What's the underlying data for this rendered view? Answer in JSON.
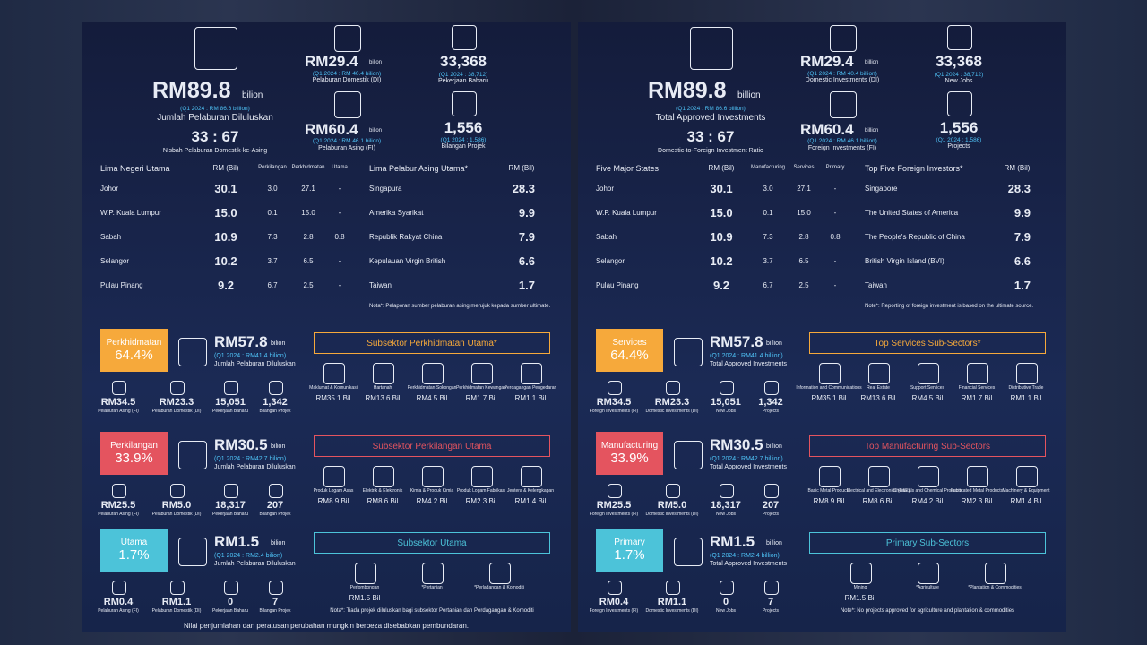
{
  "panels": [
    {
      "headline": {
        "value": "RM89.8",
        "unit": "bilion",
        "prior": "(Q1 2024 : RM 86.6 billion)",
        "label": "Jumlah Pelaburan Diluluskan"
      },
      "ratio": {
        "value": "33 : 67",
        "label": "Nisbah Pelaburan Domestik-ke-Asing"
      },
      "domestic": {
        "value": "RM29.4",
        "unit": "bilion",
        "prior": "(Q1 2024 : RM 40.4 bilion)",
        "label": "Pelaburan Domestik (DI)"
      },
      "foreign": {
        "value": "RM60.4",
        "unit": "bilion",
        "prior": "(Q1 2024 : RM 46.1 bilion)",
        "label": "Pelaburan Asing (FI)"
      },
      "jobs": {
        "value": "33,368",
        "prior": "(Q1 2024 : 38,712)",
        "label": "Pekerjaan Baharu"
      },
      "projects": {
        "value": "1,556",
        "prior": "(Q1 2024 : 1,586)",
        "label": "Bilangan Projek"
      },
      "states": {
        "title": "Lima Negeri Utama",
        "headers": [
          "RM (Bil)",
          "Perkilangan",
          "Perkhidmatan",
          "Utama"
        ],
        "rows": [
          {
            "name": "Johor",
            "value": "30.1",
            "manufacturing": "3.0",
            "services": "27.1",
            "primary": "-"
          },
          {
            "name": "W.P. Kuala Lumpur",
            "value": "15.0",
            "manufacturing": "0.1",
            "services": "15.0",
            "primary": "-"
          },
          {
            "name": "Sabah",
            "value": "10.9",
            "manufacturing": "7.3",
            "services": "2.8",
            "primary": "0.8"
          },
          {
            "name": "Selangor",
            "value": "10.2",
            "manufacturing": "3.7",
            "services": "6.5",
            "primary": "-"
          },
          {
            "name": "Pulau Pinang",
            "value": "9.2",
            "manufacturing": "6.7",
            "services": "2.5",
            "primary": "-"
          }
        ]
      },
      "investors": {
        "title": "Lima Pelabur Asing Utama*",
        "header": "RM (Bil)",
        "rows": [
          {
            "name": "Singapura",
            "value": "28.3"
          },
          {
            "name": "Amerika Syarikat",
            "value": "9.9"
          },
          {
            "name": "Republik Rakyat China",
            "value": "7.9"
          },
          {
            "name": "Kepulauan Virgin British",
            "value": "6.6"
          },
          {
            "name": "Taiwan",
            "value": "1.7"
          }
        ],
        "note": "Nota*: Pelaporan sumber pelaburan asing merujuk kepada sumber ultimate."
      },
      "sectors": [
        {
          "name": "Perkhidmatan",
          "share": "64.4%",
          "value": "RM57.8",
          "unit": "bilion",
          "prior": "(Q1 2024 : RM41.4 bilion)",
          "label": "Jumlah Pelaburan Diluluskan",
          "stats": [
            {
              "value": "RM34.5",
              "label": "Pelaburan Asing (FI)"
            },
            {
              "value": "RM23.3",
              "label": "Pelaburan Domestik (DI)"
            },
            {
              "value": "15,051",
              "label": "Pekerjaan Baharu"
            },
            {
              "value": "1,342",
              "label": "Bilangan Projek"
            }
          ],
          "subsector_title": "Subsektor Perkhidmatan Utama*",
          "subsectors": [
            {
              "label": "Maklumat & Komunikasi",
              "value": "RM35.1 Bil"
            },
            {
              "label": "Hartanah",
              "value": "RM13.6 Bil"
            },
            {
              "label": "Perkhidmatan Sokongan",
              "value": "RM4.5 Bil"
            },
            {
              "label": "Perkhidmatan Kewangan",
              "value": "RM1.7 Bil"
            },
            {
              "label": "Perdagangan Pengedaran",
              "value": "RM1.1 Bil"
            }
          ]
        },
        {
          "name": "Perkilangan",
          "share": "33.9%",
          "value": "RM30.5",
          "unit": "bilion",
          "prior": "(Q1 2024 : RM42.7 bilion)",
          "label": "Jumlah Pelaburan Diluluskan",
          "stats": [
            {
              "value": "RM25.5",
              "label": "Pelaburan Asing (FI)"
            },
            {
              "value": "RM5.0",
              "label": "Pelaburan Domestik (DI)"
            },
            {
              "value": "18,317",
              "label": "Pekerjaan Baharu"
            },
            {
              "value": "207",
              "label": "Bilangan Projek"
            }
          ],
          "subsector_title": "Subsektor Perkilangan Utama",
          "subsectors": [
            {
              "label": "Produk Logam Asas",
              "value": "RM8.9 Bil"
            },
            {
              "label": "Elektrik & Elektronik",
              "value": "RM8.6 Bil"
            },
            {
              "label": "Kimia & Produk Kimia",
              "value": "RM4.2 Bil"
            },
            {
              "label": "Produk Logam Fabrikasi",
              "value": "RM2.3 Bil"
            },
            {
              "label": "Jentera & Kelengkapan",
              "value": "RM1.4 Bil"
            }
          ]
        },
        {
          "name": "Utama",
          "share": "1.7%",
          "value": "RM1.5",
          "unit": "bilion",
          "prior": "(Q1 2024 : RM2.4 bilion)",
          "label": "Jumlah Pelaburan Diluluskan",
          "stats": [
            {
              "value": "RM0.4",
              "label": "Pelaburan Asing (FI)"
            },
            {
              "value": "RM1.1",
              "label": "Pelaburan Domestik (DI)"
            },
            {
              "value": "0",
              "label": "Pekerjaan Baharu"
            },
            {
              "value": "7",
              "label": "Bilangan Projek"
            }
          ],
          "subsector_title": "Subsektor Utama",
          "subsectors": [
            {
              "label": "Perlombongan",
              "value": "RM1.5 Bil"
            },
            {
              "label": "*Pertanian"
            },
            {
              "label": "*Perladangan & Komoditi"
            }
          ]
        }
      ],
      "note": "Nota*: Tiada projek diluluskan bagi subsektor Pertanian dan Perdagangan & Komoditi",
      "footer": "Nilai penjumlahan dan peratusan perubahan mungkin berbeza disebabkan pembundaran."
    },
    {
      "headline": {
        "value": "RM89.8",
        "unit": "billion",
        "prior": "(Q1 2024 : RM 86.6 billion)",
        "label": "Total Approved Investments"
      },
      "ratio": {
        "value": "33 : 67",
        "label": "Domestic-to-Foreign Investment Ratio"
      },
      "domestic": {
        "value": "RM29.4",
        "unit": "billion",
        "prior": "(Q1 2024 : RM 40.4 billion)",
        "label": "Domestic Investments (DI)"
      },
      "foreign": {
        "value": "RM60.4",
        "unit": "billion",
        "prior": "(Q1 2024 : RM 46.1 billion)",
        "label": "Foreign Investments (FI)"
      },
      "jobs": {
        "value": "33,368",
        "prior": "(Q1 2024 : 38,712)",
        "label": "New Jobs"
      },
      "projects": {
        "value": "1,556",
        "prior": "(Q1 2024 : 1,586)",
        "label": "Projects"
      },
      "states": {
        "title": "Five Major States",
        "headers": [
          "RM (Bil)",
          "Manufacturing",
          "Services",
          "Primary"
        ],
        "rows": [
          {
            "name": "Johor",
            "value": "30.1",
            "manufacturing": "3.0",
            "services": "27.1",
            "primary": "-"
          },
          {
            "name": "W.P. Kuala Lumpur",
            "value": "15.0",
            "manufacturing": "0.1",
            "services": "15.0",
            "primary": "-"
          },
          {
            "name": "Sabah",
            "value": "10.9",
            "manufacturing": "7.3",
            "services": "2.8",
            "primary": "0.8"
          },
          {
            "name": "Selangor",
            "value": "10.2",
            "manufacturing": "3.7",
            "services": "6.5",
            "primary": "-"
          },
          {
            "name": "Pulau Pinang",
            "value": "9.2",
            "manufacturing": "6.7",
            "services": "2.5",
            "primary": "-"
          }
        ]
      },
      "investors": {
        "title": "Top Five  Foreign Investors*",
        "header": "RM (Bil)",
        "rows": [
          {
            "name": "Singapore",
            "value": "28.3"
          },
          {
            "name": "The United States of America",
            "value": "9.9"
          },
          {
            "name": "The People's Republic of China",
            "value": "7.9"
          },
          {
            "name": "British Virgin Island (BVI)",
            "value": "6.6"
          },
          {
            "name": "Taiwan",
            "value": "1.7"
          }
        ],
        "note": "Note*: Reporting of foreign investment is based on the ultimate source."
      },
      "sectors": [
        {
          "name": "Services",
          "share": "64.4%",
          "value": "RM57.8",
          "unit": "billion",
          "prior": "(Q1 2024 : RM41.4 billion)",
          "label": "Total Approved Investments",
          "stats": [
            {
              "value": "RM34.5",
              "label": "Foreign Investments (FI)"
            },
            {
              "value": "RM23.3",
              "label": "Domestic Investments (DI)"
            },
            {
              "value": "15,051",
              "label": "New Jobs"
            },
            {
              "value": "1,342",
              "label": "Projects"
            }
          ],
          "subsector_title": "Top Services Sub-Sectors*",
          "subsectors": [
            {
              "label": "Information and Communications",
              "value": "RM35.1 Bil"
            },
            {
              "label": "Real Estate",
              "value": "RM13.6 Bil"
            },
            {
              "label": "Support Services",
              "value": "RM4.5 Bil"
            },
            {
              "label": "Financial Services",
              "value": "RM1.7 Bil"
            },
            {
              "label": "Distributive Trade",
              "value": "RM1.1 Bil"
            }
          ]
        },
        {
          "name": "Manufacturing",
          "share": "33.9%",
          "value": "RM30.5",
          "unit": "billion",
          "prior": "(Q1 2024 : RM42.7 billion)",
          "label": "Total Approved Investments",
          "stats": [
            {
              "value": "RM25.5",
              "label": "Foreign Investments (FI)"
            },
            {
              "value": "RM5.0",
              "label": "Domestic Investments (DI)"
            },
            {
              "value": "18,317",
              "label": "New Jobs"
            },
            {
              "value": "207",
              "label": "Projects"
            }
          ],
          "subsector_title": "Top Manufacturing Sub-Sectors",
          "subsectors": [
            {
              "label": "Basic Metal Products",
              "value": "RM8.9 Bil"
            },
            {
              "label": "Electrical and Electronics (E&E)",
              "value": "RM8.6 Bil"
            },
            {
              "label": "Chemicals and Chemical Products",
              "value": "RM4.2 Bil"
            },
            {
              "label": "Fabricated Metal Products",
              "value": "RM2.3 Bil"
            },
            {
              "label": "Machinery & Equipment",
              "value": "RM1.4 Bil"
            }
          ]
        },
        {
          "name": "Primary",
          "share": "1.7%",
          "value": "RM1.5",
          "unit": "billion",
          "prior": "(Q1 2024 : RM2.4 billion)",
          "label": "Total Approved Investments",
          "stats": [
            {
              "value": "RM0.4",
              "label": "Foreign Investments (FI)"
            },
            {
              "value": "RM1.1",
              "label": "Domestic Investments (DI)"
            },
            {
              "value": "0",
              "label": "New Jobs"
            },
            {
              "value": "7",
              "label": "Projects"
            }
          ],
          "subsector_title": "Primary Sub-Sectors",
          "subsectors": [
            {
              "label": "Mining",
              "value": "RM1.5 Bil"
            },
            {
              "label": "*Agriculture"
            },
            {
              "label": "*Plantation & Commodities"
            }
          ]
        }
      ],
      "note": "Note*: No projects approved for agriculture and plantation & commodities"
    }
  ]
}
